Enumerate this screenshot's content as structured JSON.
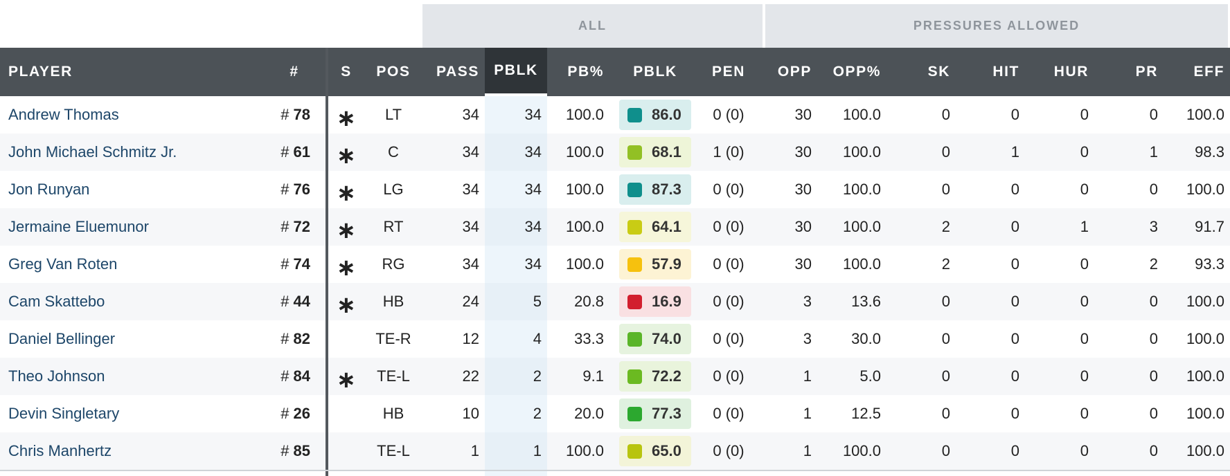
{
  "groups": {
    "all": "ALL",
    "pressures": "PRESSURES ALLOWED"
  },
  "columns": {
    "player": "PLAYER",
    "number": "#",
    "s": "S",
    "pos": "POS",
    "pass": "PASS",
    "pblk": "PBLK",
    "pb_pct": "PB%",
    "pblk_grade": "PBLK",
    "pen": "PEN",
    "opp": "OPP",
    "opp_pct": "OPP%",
    "sk": "SK",
    "hit": "HIT",
    "hur": "HUR",
    "pr": "PR",
    "eff": "EFF"
  },
  "sorted_column": "PBLK",
  "grade_colors": {
    "teal": "#0f8f8c",
    "lime": "#92c024",
    "yellowgreen": "#c9cc14",
    "amber": "#f6c10e",
    "red": "#d21f2e",
    "green": "#5ab529",
    "green2": "#2ca82f",
    "olive": "#b8c40f"
  },
  "rows": [
    {
      "name": "Andrew Thomas",
      "num_prefix": "#",
      "num": "78",
      "starter": "∗",
      "pos": "LT",
      "pass": "34",
      "pblk": "34",
      "pb_pct": "100.0",
      "grade": "86.0",
      "grade_color": "#0f8f8c",
      "grade_bg": "#d9eeee",
      "pen": "0 (0)",
      "opp": "30",
      "opp_pct": "100.0",
      "sk": "0",
      "hit": "0",
      "hur": "0",
      "pr": "0",
      "eff": "100.0"
    },
    {
      "name": "John Michael Schmitz Jr.",
      "num_prefix": "#",
      "num": "61",
      "starter": "∗",
      "pos": "C",
      "pass": "34",
      "pblk": "34",
      "pb_pct": "100.0",
      "grade": "68.1",
      "grade_color": "#92c024",
      "grade_bg": "#eef5d8",
      "pen": "1 (0)",
      "opp": "30",
      "opp_pct": "100.0",
      "sk": "0",
      "hit": "1",
      "hur": "0",
      "pr": "1",
      "eff": "98.3"
    },
    {
      "name": "Jon Runyan",
      "num_prefix": "#",
      "num": "76",
      "starter": "∗",
      "pos": "LG",
      "pass": "34",
      "pblk": "34",
      "pb_pct": "100.0",
      "grade": "87.3",
      "grade_color": "#0f8f8c",
      "grade_bg": "#d9eeee",
      "pen": "0 (0)",
      "opp": "30",
      "opp_pct": "100.0",
      "sk": "0",
      "hit": "0",
      "hur": "0",
      "pr": "0",
      "eff": "100.0"
    },
    {
      "name": "Jermaine Eluemunor",
      "num_prefix": "#",
      "num": "72",
      "starter": "∗",
      "pos": "RT",
      "pass": "34",
      "pblk": "34",
      "pb_pct": "100.0",
      "grade": "64.1",
      "grade_color": "#c9cc14",
      "grade_bg": "#f6f6da",
      "pen": "0 (0)",
      "opp": "30",
      "opp_pct": "100.0",
      "sk": "2",
      "hit": "0",
      "hur": "1",
      "pr": "3",
      "eff": "91.7"
    },
    {
      "name": "Greg Van Roten",
      "num_prefix": "#",
      "num": "74",
      "starter": "∗",
      "pos": "RG",
      "pass": "34",
      "pblk": "34",
      "pb_pct": "100.0",
      "grade": "57.9",
      "grade_color": "#f6c10e",
      "grade_bg": "#fdf3d4",
      "pen": "0 (0)",
      "opp": "30",
      "opp_pct": "100.0",
      "sk": "2",
      "hit": "0",
      "hur": "0",
      "pr": "2",
      "eff": "93.3"
    },
    {
      "name": "Cam Skattebo",
      "num_prefix": "#",
      "num": "44",
      "starter": "∗",
      "pos": "HB",
      "pass": "24",
      "pblk": "5",
      "pb_pct": "20.8",
      "grade": "16.9",
      "grade_color": "#d21f2e",
      "grade_bg": "#f9e0e2",
      "pen": "0 (0)",
      "opp": "3",
      "opp_pct": "13.6",
      "sk": "0",
      "hit": "0",
      "hur": "0",
      "pr": "0",
      "eff": "100.0"
    },
    {
      "name": "Daniel Bellinger",
      "num_prefix": "#",
      "num": "82",
      "starter": "",
      "pos": "TE-R",
      "pass": "12",
      "pblk": "4",
      "pb_pct": "33.3",
      "grade": "74.0",
      "grade_color": "#5ab529",
      "grade_bg": "#e6f3df",
      "pen": "0 (0)",
      "opp": "3",
      "opp_pct": "30.0",
      "sk": "0",
      "hit": "0",
      "hur": "0",
      "pr": "0",
      "eff": "100.0"
    },
    {
      "name": "Theo Johnson",
      "num_prefix": "#",
      "num": "84",
      "starter": "∗",
      "pos": "TE-L",
      "pass": "22",
      "pblk": "2",
      "pb_pct": "9.1",
      "grade": "72.2",
      "grade_color": "#6bba21",
      "grade_bg": "#e9f4dc",
      "pen": "0 (0)",
      "opp": "1",
      "opp_pct": "5.0",
      "sk": "0",
      "hit": "0",
      "hur": "0",
      "pr": "0",
      "eff": "100.0"
    },
    {
      "name": "Devin Singletary",
      "num_prefix": "#",
      "num": "26",
      "starter": "",
      "pos": "HB",
      "pass": "10",
      "pblk": "2",
      "pb_pct": "20.0",
      "grade": "77.3",
      "grade_color": "#2ca82f",
      "grade_bg": "#dff1df",
      "pen": "0 (0)",
      "opp": "1",
      "opp_pct": "12.5",
      "sk": "0",
      "hit": "0",
      "hur": "0",
      "pr": "0",
      "eff": "100.0"
    },
    {
      "name": "Chris Manhertz",
      "num_prefix": "#",
      "num": "85",
      "starter": "",
      "pos": "TE-L",
      "pass": "1",
      "pblk": "1",
      "pb_pct": "100.0",
      "grade": "65.0",
      "grade_color": "#b8c40f",
      "grade_bg": "#f3f4d8",
      "pen": "0 (0)",
      "opp": "1",
      "opp_pct": "100.0",
      "sk": "0",
      "hit": "0",
      "hur": "0",
      "pr": "0",
      "eff": "100.0"
    }
  ]
}
